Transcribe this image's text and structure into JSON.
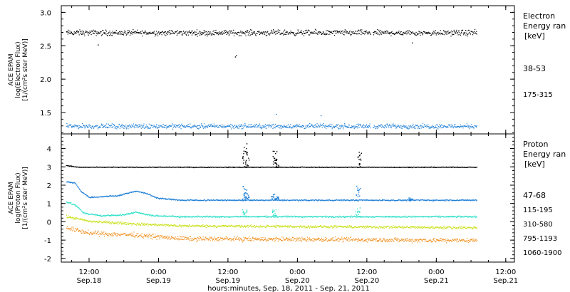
{
  "chart_data": [
    {
      "type": "scatter",
      "panel": "electron",
      "ylabel_lines": [
        "ACE EPAM",
        "log(Electron Flux)",
        "[1/(cm²s ster MeV)]"
      ],
      "yticks": [
        {
          "v": 3.0,
          "label": "3.0"
        },
        {
          "v": 2.5,
          "label": "2.5"
        },
        {
          "v": 2.0,
          "label": "2.0"
        },
        {
          "v": 1.5,
          "label": "1.5"
        }
      ],
      "ylim": [
        1.18,
        3.1
      ],
      "legend_lines": [
        "Electron",
        "Energy ran"
      ],
      "legend_unit": "[keV]",
      "series": [
        {
          "name": "38-53",
          "color": "#000000",
          "base": 2.7,
          "spread": 0.06,
          "x_range": [
            8,
            79
          ],
          "gaps": [
            [
              60.6,
              61.0
            ]
          ],
          "extra_points": [
            [
              37.2,
              2.34
            ],
            [
              37.4,
              2.36
            ],
            [
              13.5,
              2.52
            ],
            [
              67.8,
              2.55
            ]
          ]
        },
        {
          "name": "175-315",
          "color": "#1c7ed6",
          "base": 1.3,
          "spread": 0.05,
          "x_range": [
            8,
            79
          ],
          "gaps": [
            [
              60.6,
              61.0
            ]
          ],
          "extra_points": [
            [
              44.3,
              1.48
            ],
            [
              52.0,
              1.46
            ]
          ]
        }
      ]
    },
    {
      "type": "scatter",
      "panel": "proton",
      "ylabel_lines": [
        "ACE EPAM",
        "log(Proton Flux)",
        "[1/(cm²s ster MeV)]"
      ],
      "yticks": [
        {
          "v": 4,
          "label": "4"
        },
        {
          "v": 3,
          "label": "3"
        },
        {
          "v": 2,
          "label": "2"
        },
        {
          "v": 1,
          "label": "1"
        },
        {
          "v": 0,
          "label": "0"
        },
        {
          "v": -1,
          "label": "-1"
        },
        {
          "v": -2,
          "label": "-2"
        }
      ],
      "ylim": [
        -2.2,
        4.8
      ],
      "legend_lines": [
        "Proton",
        "Energy ran"
      ],
      "legend_unit": "[keV]",
      "series": [
        {
          "name": "47-68",
          "color": "#000000",
          "profile": [
            [
              8,
              3.1
            ],
            [
              9,
              3.05
            ],
            [
              10,
              3.0
            ],
            [
              79,
              3.0
            ]
          ],
          "spread": 0.03,
          "x_range": [
            8,
            79
          ],
          "spikes": [
            [
              38.8,
              4.3
            ],
            [
              39.2,
              3.9
            ],
            [
              44.0,
              3.9
            ],
            [
              44.4,
              3.4
            ],
            [
              58.6,
              3.9
            ]
          ]
        },
        {
          "name": "115-195",
          "color": "#1c7ed6",
          "profile": [
            [
              8,
              2.2
            ],
            [
              9.5,
              2.15
            ],
            [
              10.5,
              1.7
            ],
            [
              12,
              1.35
            ],
            [
              17,
              1.45
            ],
            [
              20,
              1.7
            ],
            [
              22,
              1.55
            ],
            [
              24,
              1.3
            ],
            [
              28,
              1.2
            ],
            [
              79,
              1.2
            ]
          ],
          "spread": 0.05,
          "x_range": [
            8,
            79
          ],
          "spikes": [
            [
              38.8,
              2.1
            ],
            [
              39.2,
              1.7
            ],
            [
              43.8,
              1.6
            ],
            [
              44.4,
              1.4
            ],
            [
              58.4,
              2.0
            ],
            [
              67.5,
              1.4
            ]
          ]
        },
        {
          "name": "310-580",
          "color": "#2ee0c8",
          "profile": [
            [
              8,
              1.1
            ],
            [
              9.5,
              0.95
            ],
            [
              11,
              0.5
            ],
            [
              14,
              0.35
            ],
            [
              18,
              0.4
            ],
            [
              20,
              0.55
            ],
            [
              23,
              0.35
            ],
            [
              28,
              0.3
            ],
            [
              79,
              0.3
            ]
          ],
          "spread": 0.06,
          "x_range": [
            8,
            79
          ],
          "spikes": [
            [
              38.8,
              0.8
            ],
            [
              44.0,
              0.7
            ],
            [
              58.4,
              0.8
            ]
          ]
        },
        {
          "name": "795-1193",
          "color": "#c8e01a",
          "profile": [
            [
              8,
              0.3
            ],
            [
              12,
              0.05
            ],
            [
              20,
              -0.1
            ],
            [
              28,
              -0.2
            ],
            [
              79,
              -0.3
            ]
          ],
          "spread": 0.1,
          "x_range": [
            8,
            79
          ],
          "spikes": []
        },
        {
          "name": "1060-1900",
          "color": "#f0901e",
          "profile": [
            [
              8,
              -0.3
            ],
            [
              12,
              -0.6
            ],
            [
              20,
              -0.7
            ],
            [
              28,
              -0.9
            ],
            [
              79,
              -1.0
            ]
          ],
          "spread": 0.18,
          "x_range": [
            8,
            79
          ],
          "spikes": []
        }
      ]
    }
  ],
  "xaxis": {
    "ticks": [
      {
        "x": 12,
        "line1": "12:00",
        "line2": "Sep.18"
      },
      {
        "x": 24,
        "line1": "0:00",
        "line2": "Sep.19"
      },
      {
        "x": 36,
        "line1": "12:00",
        "line2": "Sep.19"
      },
      {
        "x": 48,
        "line1": "0:00",
        "line2": "Sep.20"
      },
      {
        "x": 60,
        "line1": "12:00",
        "line2": "Sep.20"
      },
      {
        "x": 72,
        "line1": "0:00",
        "line2": "Sep.21"
      },
      {
        "x": 84,
        "line1": "12:00",
        "line2": "Sep.21"
      }
    ],
    "xlim": [
      7.2,
      85.5
    ],
    "label": "hours:minutes, Sep. 18, 2011 - Sep. 21, 2011"
  }
}
